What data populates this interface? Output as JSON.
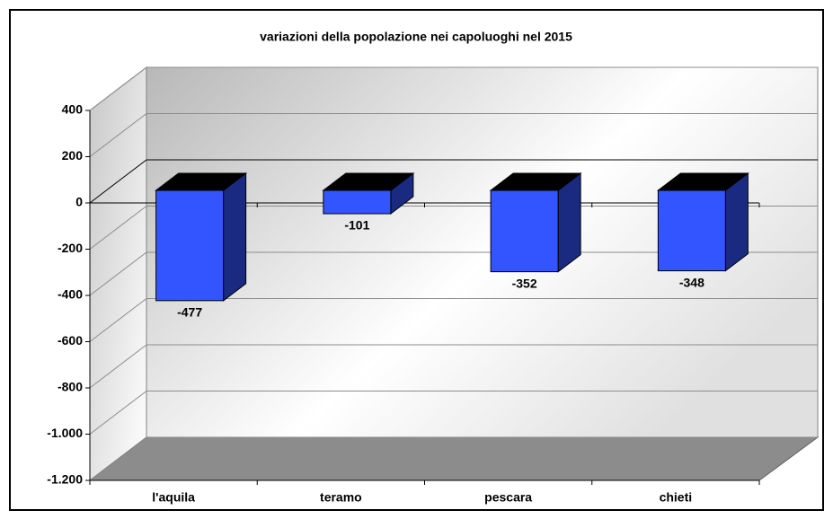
{
  "chart_data": {
    "type": "bar3d",
    "title": "variazioni della popolazione nei capoluoghi nel 2015",
    "categories": [
      "l'aquila",
      "teramo",
      "pescara",
      "chieti"
    ],
    "values": [
      -477,
      -101,
      -352,
      -348
    ],
    "color": "#3355ff",
    "ylim": [
      -1200,
      400
    ],
    "yticks": [
      {
        "value": -1200,
        "label": "-1.200"
      },
      {
        "value": -1000,
        "label": "-1.000"
      },
      -800,
      -600,
      -400,
      -200,
      0,
      200,
      400
    ],
    "grid": true
  }
}
